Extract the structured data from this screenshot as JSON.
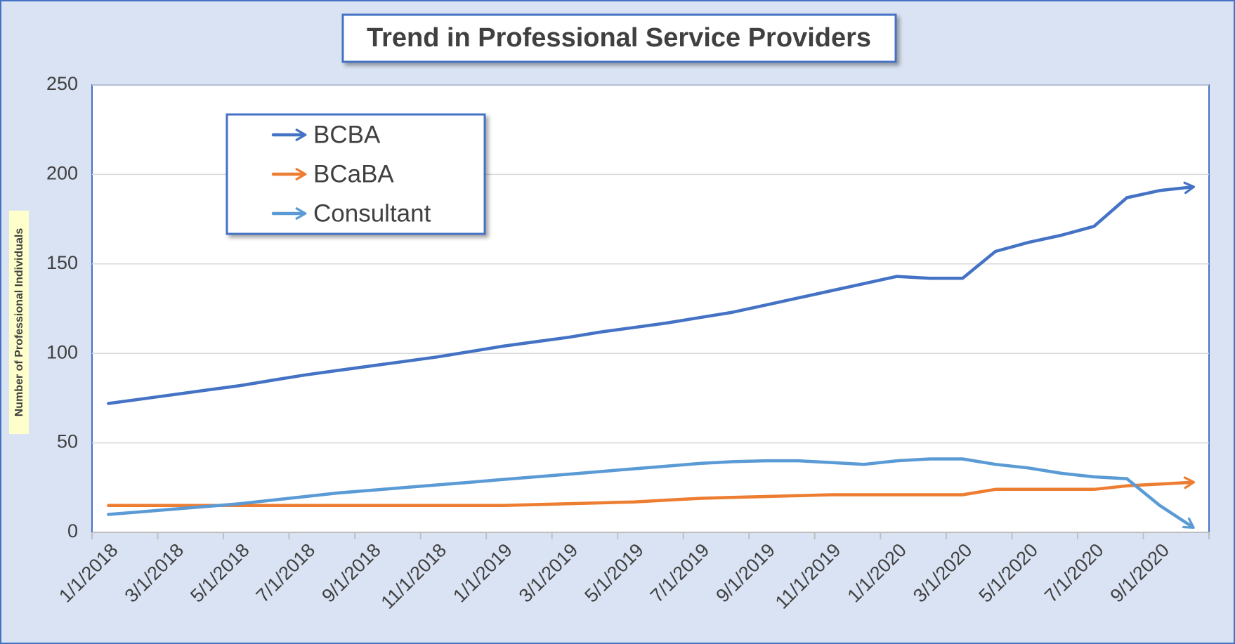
{
  "chart_data": {
    "type": "line",
    "title": "Trend in Professional Service Providers",
    "y_label": "Number of Professional Individuals",
    "categories": [
      "1/1/2018",
      null,
      "3/1/2018",
      null,
      "5/1/2018",
      null,
      "7/1/2018",
      null,
      "9/1/2018",
      null,
      "11/1/2018",
      null,
      "1/1/2019",
      null,
      "3/1/2019",
      null,
      "5/1/2019",
      null,
      "7/1/2019",
      null,
      "9/1/2019",
      null,
      "11/1/2019",
      null,
      "1/1/2020",
      null,
      "3/1/2020",
      null,
      "5/1/2020",
      null,
      "7/1/2020",
      null,
      "9/1/2020",
      null
    ],
    "series": [
      {
        "name": "BCBA",
        "color": "#4472c4",
        "values": [
          72,
          74.5,
          77,
          79.5,
          82,
          85,
          88,
          90.5,
          93,
          95.5,
          98,
          101,
          104,
          106.5,
          109,
          112,
          114.5,
          117,
          120,
          123,
          127,
          131,
          135,
          139,
          143,
          142,
          142,
          157,
          162,
          166,
          171,
          187,
          191,
          193
        ]
      },
      {
        "name": "BCaBA",
        "color": "#ed7d31",
        "values": [
          15,
          15,
          15,
          15,
          15,
          15,
          15,
          15,
          15,
          15,
          15,
          15,
          15,
          15.5,
          16,
          16.5,
          17,
          18,
          19,
          19.5,
          20,
          20.5,
          21,
          21,
          21,
          21,
          21,
          24,
          24,
          24,
          24,
          26,
          27,
          28
        ]
      },
      {
        "name": "Consultant",
        "color": "#5b9bd5",
        "values": [
          10,
          11.5,
          13,
          14.5,
          16,
          18,
          20,
          22,
          23.5,
          25,
          26.5,
          28,
          29.5,
          31,
          32.5,
          34,
          35.5,
          37,
          38.5,
          39.5,
          40,
          40,
          39,
          38,
          40,
          41,
          41,
          38,
          36,
          33,
          31,
          30,
          15,
          3
        ]
      }
    ],
    "ylim": [
      0,
      250
    ],
    "yticks": [
      0,
      50,
      100,
      150,
      200,
      250
    ],
    "grid": true,
    "legend": "top-left"
  }
}
